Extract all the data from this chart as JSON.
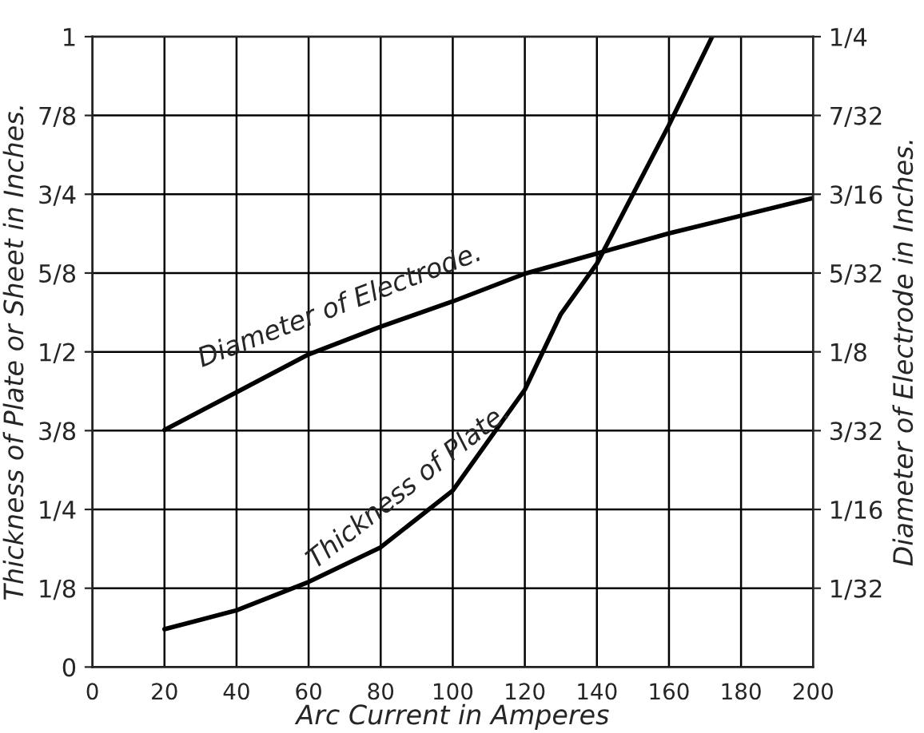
{
  "chart_data": {
    "type": "line",
    "xlabel": "Arc Current in Amperes",
    "ylabel": "Thickness of Plate or Sheet in Inches.",
    "y2label": "Diameter of Electrode in Inches.",
    "xlim": [
      0,
      200
    ],
    "xticks": [
      0,
      20,
      40,
      60,
      80,
      100,
      120,
      140,
      160,
      180,
      200
    ],
    "ylim": [
      0,
      1
    ],
    "yticks": [
      0,
      {
        "value": 0.125,
        "label": "1/8"
      },
      {
        "value": 0.25,
        "label": "1/4"
      },
      {
        "value": 0.375,
        "label": "3/8"
      },
      {
        "value": 0.5,
        "label": "1/2"
      },
      {
        "value": 0.625,
        "label": "5/8"
      },
      {
        "value": 0.75,
        "label": "3/4"
      },
      {
        "value": 0.875,
        "label": "7/8"
      },
      1
    ],
    "y2lim": [
      0,
      0.25
    ],
    "y2ticks": [
      {
        "value": 0.03125,
        "label": "1/32"
      },
      {
        "value": 0.0625,
        "label": "1/16"
      },
      {
        "value": 0.09375,
        "label": "3/32"
      },
      {
        "value": 0.125,
        "label": "1/8"
      },
      {
        "value": 0.15625,
        "label": "5/32"
      },
      {
        "value": 0.1875,
        "label": "3/16"
      },
      {
        "value": 0.21875,
        "label": "7/32"
      },
      {
        "value": 0.25,
        "label": "1/4"
      }
    ],
    "grid": true,
    "legend": false,
    "marker": "none",
    "line_style": "solid",
    "series": [
      {
        "name": "Diameter of Electrode.",
        "color": "#000000",
        "axis": "y2",
        "x": [
          20,
          40,
          60,
          80,
          100,
          120,
          140,
          160,
          180,
          200
        ],
        "values": [
          0.094,
          0.109,
          0.124,
          0.135,
          0.145,
          0.156,
          0.164,
          0.172,
          0.179,
          0.186
        ]
      },
      {
        "name": "Thickness of Plate.",
        "color": "#000000",
        "x": [
          20,
          40,
          60,
          80,
          100,
          120,
          130,
          140,
          150,
          160,
          172
        ],
        "values": [
          0.06,
          0.09,
          0.135,
          0.19,
          0.28,
          0.44,
          0.56,
          0.64,
          0.75,
          0.86,
          1.0
        ]
      }
    ]
  }
}
